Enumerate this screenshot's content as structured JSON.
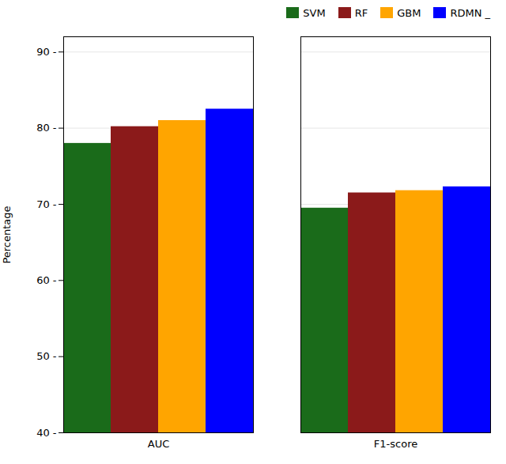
{
  "chart_data": {
    "type": "bar",
    "categories": [
      "AUC",
      "F1-score"
    ],
    "series": [
      {
        "name": "SVM",
        "color": "#1a6b1a",
        "values": [
          78.0,
          69.5
        ]
      },
      {
        "name": "RF",
        "color": "#8b1a1a",
        "values": [
          80.2,
          71.5
        ]
      },
      {
        "name": "GBM",
        "color": "#ffa500",
        "values": [
          81.0,
          71.8
        ]
      },
      {
        "name": "RDMN _",
        "color": "#0000ff",
        "values": [
          82.5,
          72.3
        ]
      }
    ],
    "ylabel": "Percentage",
    "ylim": [
      40,
      92
    ],
    "yticks": [
      {
        "value": 40,
        "label": "40 -"
      },
      {
        "value": 50,
        "label": "50 -"
      },
      {
        "value": 60,
        "label": "60 -"
      },
      {
        "value": 70,
        "label": "70 -"
      },
      {
        "value": 80,
        "label": "80 -"
      },
      {
        "value": 90,
        "label": "90 -"
      }
    ],
    "grid": true,
    "legend": "upper right"
  }
}
